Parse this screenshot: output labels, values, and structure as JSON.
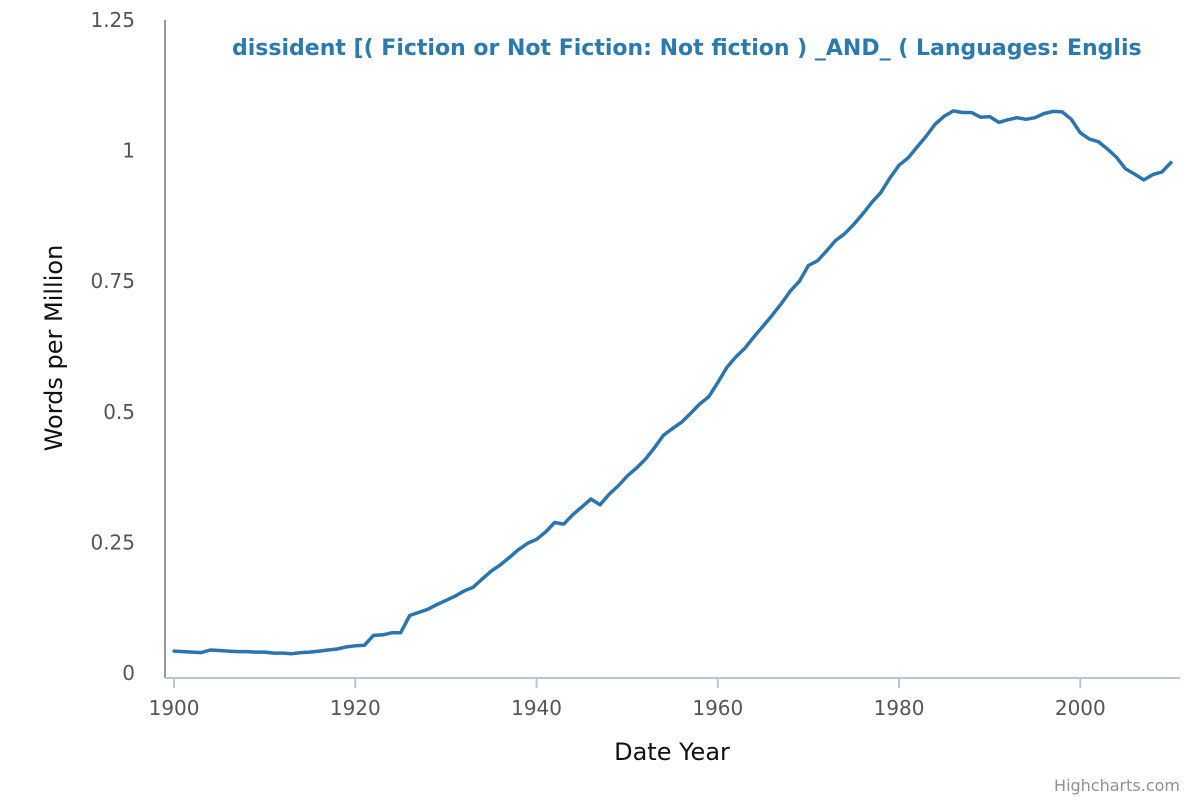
{
  "chart_data": {
    "type": "line",
    "title": "dissident [( Fiction or Not Fiction: Not fiction ) _AND_ ( Languages: Englis",
    "xlabel": "Date Year",
    "ylabel": "Words per Million",
    "xlim": [
      1899,
      2011
    ],
    "ylim": [
      0,
      1.25
    ],
    "x_ticks": [
      1900,
      1920,
      1940,
      1960,
      1980,
      2000
    ],
    "y_ticks": [
      0,
      0.25,
      0.5,
      0.75,
      1,
      1.25
    ],
    "y_tick_labels": [
      "0",
      "0.25",
      "0.5",
      "0.75",
      "1",
      "1.25"
    ],
    "grid": false,
    "line_color": "#2a74b0",
    "title_color": "#2a7ab0",
    "series": [
      {
        "x": [
          1900,
          1901,
          1902,
          1903,
          1904,
          1905,
          1906,
          1907,
          1908,
          1909,
          1910,
          1911,
          1912,
          1913,
          1914,
          1915,
          1916,
          1917,
          1918,
          1919,
          1920,
          1921,
          1922,
          1923,
          1924,
          1925,
          1926,
          1927,
          1928,
          1929,
          1930,
          1931,
          1932,
          1933,
          1934,
          1935,
          1936,
          1937,
          1938,
          1939,
          1940,
          1941,
          1942,
          1943,
          1944,
          1945,
          1946,
          1947,
          1948,
          1949,
          1950,
          1951,
          1952,
          1953,
          1954,
          1955,
          1956,
          1957,
          1958,
          1959,
          1960,
          1961,
          1962,
          1963,
          1964,
          1965,
          1966,
          1967,
          1968,
          1969,
          1970,
          1971,
          1972,
          1973,
          1974,
          1975,
          1976,
          1977,
          1978,
          1979,
          1980,
          1981,
          1982,
          1983,
          1984,
          1985,
          1986,
          1987,
          1988,
          1989,
          1990,
          1991,
          1992,
          1993,
          1994,
          1995,
          1996,
          1997,
          1998,
          1999,
          2000,
          2001,
          2002,
          2003,
          2004,
          2005,
          2006,
          2007,
          2008,
          2009,
          2010
        ],
        "values": [
          0.042,
          0.041,
          0.04,
          0.039,
          0.044,
          0.043,
          0.042,
          0.041,
          0.041,
          0.04,
          0.04,
          0.038,
          0.038,
          0.037,
          0.039,
          0.04,
          0.042,
          0.044,
          0.046,
          0.05,
          0.052,
          0.053,
          0.072,
          0.073,
          0.077,
          0.077,
          0.11,
          0.116,
          0.122,
          0.131,
          0.139,
          0.147,
          0.157,
          0.164,
          0.18,
          0.195,
          0.207,
          0.221,
          0.236,
          0.248,
          0.256,
          0.27,
          0.288,
          0.285,
          0.303,
          0.318,
          0.333,
          0.322,
          0.342,
          0.358,
          0.377,
          0.392,
          0.409,
          0.431,
          0.455,
          0.468,
          0.48,
          0.497,
          0.515,
          0.529,
          0.556,
          0.585,
          0.605,
          0.622,
          0.644,
          0.664,
          0.685,
          0.707,
          0.731,
          0.75,
          0.78,
          0.789,
          0.808,
          0.828,
          0.841,
          0.859,
          0.879,
          0.901,
          0.92,
          0.948,
          0.972,
          0.986,
          1.007,
          1.028,
          1.051,
          1.066,
          1.076,
          1.073,
          1.073,
          1.064,
          1.065,
          1.054,
          1.059,
          1.063,
          1.06,
          1.063,
          1.071,
          1.075,
          1.074,
          1.06,
          1.034,
          1.022,
          1.017,
          1.003,
          0.987,
          0.965,
          0.955,
          0.944,
          0.954,
          0.959,
          0.977
        ]
      }
    ]
  },
  "credits": "Highcharts.com"
}
